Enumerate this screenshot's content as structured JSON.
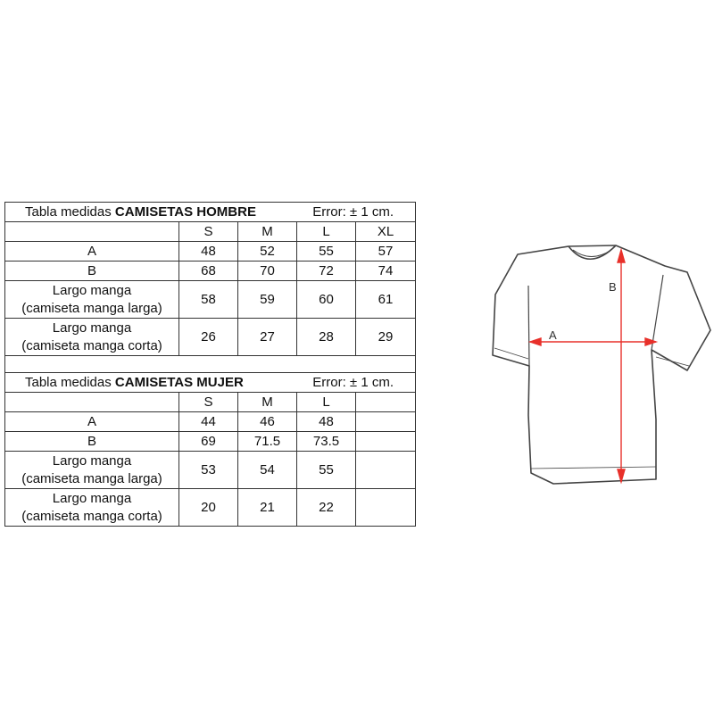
{
  "men": {
    "title_prefix": "Tabla medidas ",
    "title_bold": "CAMISETAS HOMBRE",
    "error": "Error: ± 1 cm.",
    "sizes": [
      "S",
      "M",
      "L",
      "XL"
    ],
    "rows": [
      {
        "label1": "A",
        "label2": "",
        "values": [
          "48",
          "52",
          "55",
          "57"
        ]
      },
      {
        "label1": "B",
        "label2": "",
        "values": [
          "68",
          "70",
          "72",
          "74"
        ]
      },
      {
        "label1": "Largo manga",
        "label2": "(camiseta manga larga)",
        "values": [
          "58",
          "59",
          "60",
          "61"
        ]
      },
      {
        "label1": "Largo manga",
        "label2": "(camiseta manga corta)",
        "values": [
          "26",
          "27",
          "28",
          "29"
        ]
      }
    ]
  },
  "women": {
    "title_prefix": "Tabla medidas ",
    "title_bold": "CAMISETAS MUJER",
    "error": "Error: ± 1 cm.",
    "sizes": [
      "S",
      "M",
      "L",
      ""
    ],
    "rows": [
      {
        "label1": "A",
        "label2": "",
        "values": [
          "44",
          "46",
          "48",
          ""
        ]
      },
      {
        "label1": "B",
        "label2": "",
        "values": [
          "69",
          "71.5",
          "73.5",
          ""
        ]
      },
      {
        "label1": "Largo manga",
        "label2": "(camiseta manga larga)",
        "values": [
          "53",
          "54",
          "55",
          ""
        ]
      },
      {
        "label1": "Largo manga",
        "label2": "(camiseta manga corta)",
        "values": [
          "20",
          "21",
          "22",
          ""
        ]
      }
    ]
  },
  "diagram": {
    "label_a": "A",
    "label_b": "B",
    "arrow_color": "#e8302a",
    "outline_color": "#444444"
  }
}
